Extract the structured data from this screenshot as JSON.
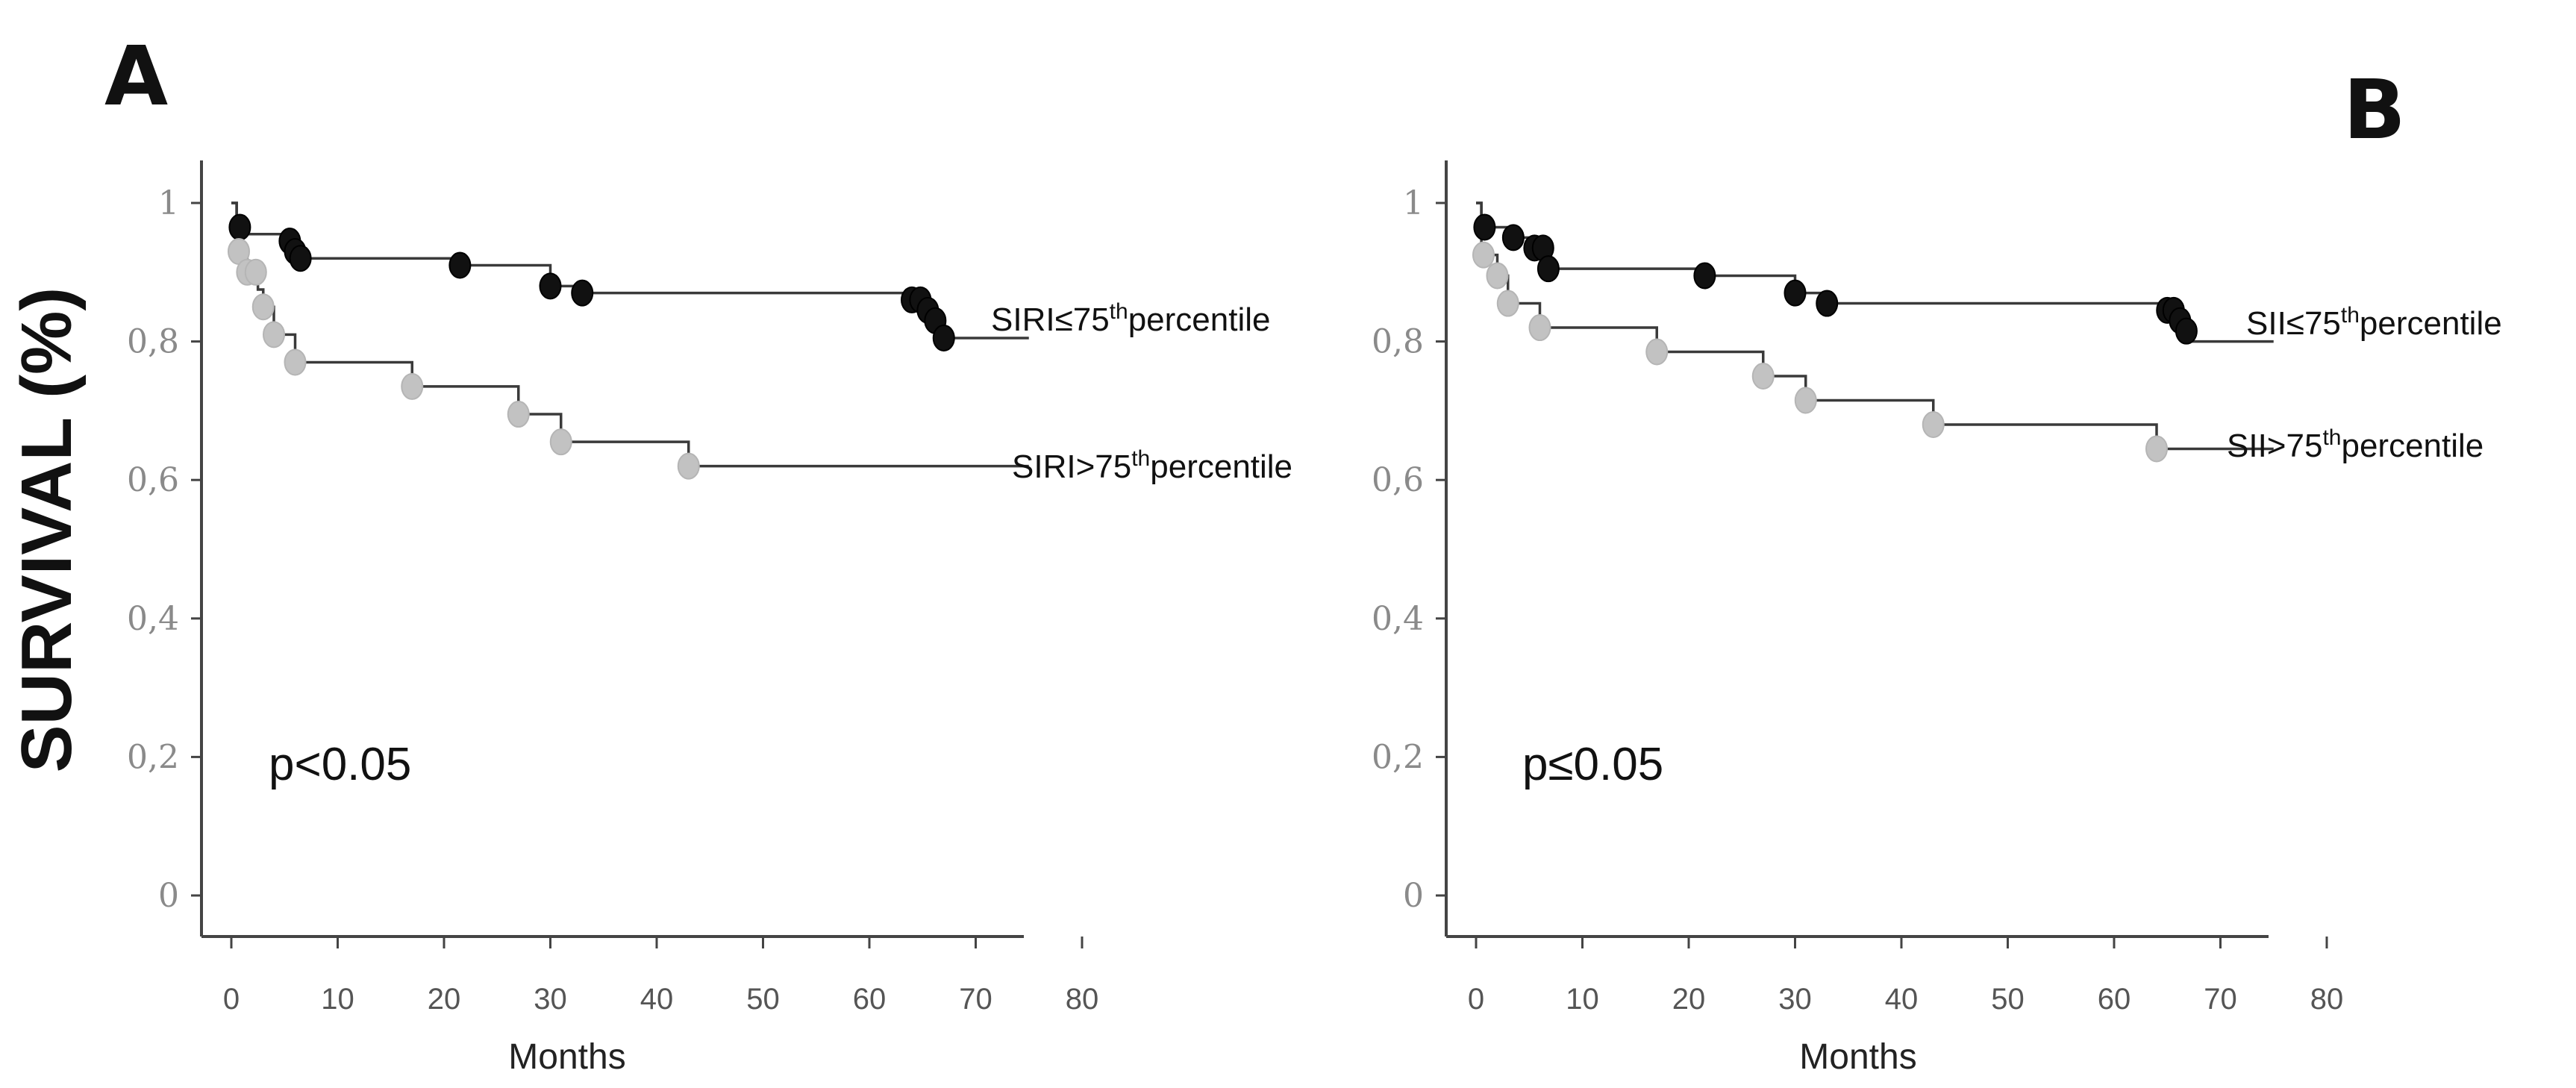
{
  "ylabel": "SURVIVAL (%)",
  "chart_data": [
    {
      "type": "line",
      "panel_label": "A",
      "xlabel": "Months",
      "ylabel": "",
      "xlim": [
        0,
        80
      ],
      "ylim": [
        0,
        1
      ],
      "x_ticks": [
        "0",
        "10",
        "20",
        "30",
        "40",
        "50",
        "60",
        "70",
        "80"
      ],
      "y_ticks": [
        "0",
        "0,2",
        "0,4",
        "0,6",
        "0,8",
        "1"
      ],
      "annotation": "p<0.05",
      "series": [
        {
          "name": "SIRI≤75thpercentile",
          "label_main": "SIRI≤75",
          "label_sup": "th",
          "label_tail": "percentile",
          "color": "#111111",
          "x": [
            0,
            0.5,
            1,
            5,
            6,
            6.5,
            21,
            30,
            33,
            64,
            65,
            66,
            67,
            75
          ],
          "y": [
            1,
            0.965,
            0.955,
            0.945,
            0.93,
            0.92,
            0.91,
            0.88,
            0.87,
            0.86,
            0.845,
            0.83,
            0.805,
            0.805
          ],
          "censored_x": [
            0.8,
            5.5,
            6,
            6.5,
            21.5,
            30,
            33,
            64,
            64.8,
            65.5,
            66.2,
            67
          ]
        },
        {
          "name": "SIRI>75thpercentile",
          "label_main": "SIRI>75",
          "label_sup": "th",
          "label_tail": "percentile",
          "color": "#c2c2c2",
          "x": [
            0,
            0.5,
            1.5,
            2.5,
            3,
            4,
            6,
            17,
            27,
            31,
            43,
            75
          ],
          "y": [
            1,
            0.93,
            0.9,
            0.875,
            0.85,
            0.81,
            0.77,
            0.735,
            0.695,
            0.655,
            0.62,
            0.62
          ],
          "censored_x": [
            0.7,
            1.5,
            2.3,
            3,
            4,
            6,
            17,
            27,
            31,
            43
          ]
        }
      ]
    },
    {
      "type": "line",
      "panel_label": "B",
      "xlabel": "Months",
      "ylabel": "",
      "xlim": [
        0,
        80
      ],
      "ylim": [
        0,
        1
      ],
      "x_ticks": [
        "0",
        "10",
        "20",
        "30",
        "40",
        "50",
        "60",
        "70",
        "80"
      ],
      "y_ticks": [
        "0",
        "0,2",
        "0,4",
        "0,6",
        "0,8",
        "1"
      ],
      "annotation": "p≤0.05",
      "series": [
        {
          "name": "SII≤75thpercentile",
          "label_main": "SII≤75",
          "label_sup": "th",
          "label_tail": "percentile",
          "color": "#111111",
          "x": [
            0,
            0.5,
            3.5,
            5.5,
            6.5,
            21,
            30,
            33,
            65,
            65.8,
            66.5,
            67,
            75
          ],
          "y": [
            1,
            0.965,
            0.95,
            0.935,
            0.905,
            0.895,
            0.87,
            0.855,
            0.845,
            0.83,
            0.815,
            0.8,
            0.8
          ],
          "censored_x": [
            0.8,
            3.5,
            5.5,
            6.3,
            6.8,
            21.5,
            30,
            33,
            65,
            65.6,
            66.2,
            66.8
          ]
        },
        {
          "name": "SII>75thpercentile",
          "label_main": "SII>75",
          "label_sup": "th",
          "label_tail": "percentile",
          "color": "#c2c2c2",
          "x": [
            0,
            0.5,
            2,
            3,
            6,
            17,
            27,
            31,
            43,
            64,
            75
          ],
          "y": [
            1,
            0.925,
            0.895,
            0.855,
            0.82,
            0.785,
            0.75,
            0.715,
            0.68,
            0.645,
            0.645
          ],
          "censored_x": [
            0.7,
            2,
            3,
            6,
            17,
            27,
            31,
            43,
            64
          ]
        }
      ]
    }
  ]
}
